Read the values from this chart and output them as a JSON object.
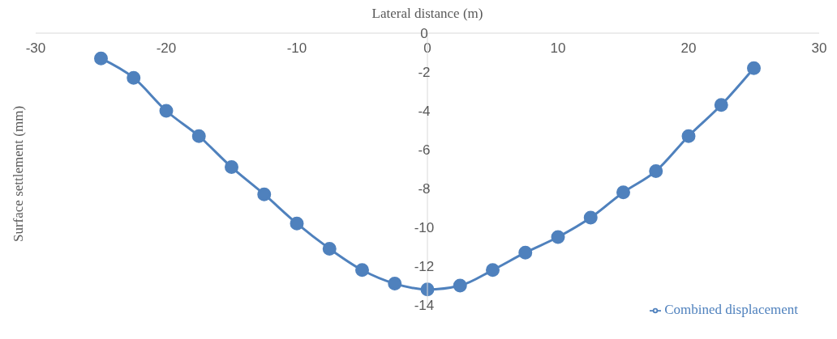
{
  "chart_data": {
    "type": "line",
    "xlabel": "Lateral distance (m)",
    "ylabel": "Surface settlement (mm)",
    "x": [
      -25,
      -22.5,
      -20,
      -17.5,
      -15,
      -12.5,
      -10,
      -7.5,
      -5,
      -2.5,
      0,
      2.5,
      5,
      7.5,
      10,
      12.5,
      15,
      17.5,
      20,
      22.5,
      25
    ],
    "series": [
      {
        "name": "Combined displacement",
        "color": "#4f81bd",
        "values": [
          -1.3,
          -2.3,
          -4.0,
          -5.3,
          -6.9,
          -8.3,
          -9.8,
          -11.1,
          -12.2,
          -12.9,
          -13.2,
          -13.0,
          -12.2,
          -11.3,
          -10.5,
          -9.5,
          -8.2,
          -7.1,
          -5.3,
          -3.7,
          -1.8
        ]
      }
    ],
    "xlim": [
      -30,
      30
    ],
    "xticks": [
      -30,
      -20,
      -10,
      0,
      10,
      20,
      30
    ],
    "ylim": [
      -14,
      0
    ],
    "yticks": [
      -14,
      -12,
      -10,
      -8,
      -6,
      -4,
      -2,
      0
    ],
    "grid": false,
    "legend": "bottom right",
    "marker": "circle",
    "line_style": "solid"
  }
}
